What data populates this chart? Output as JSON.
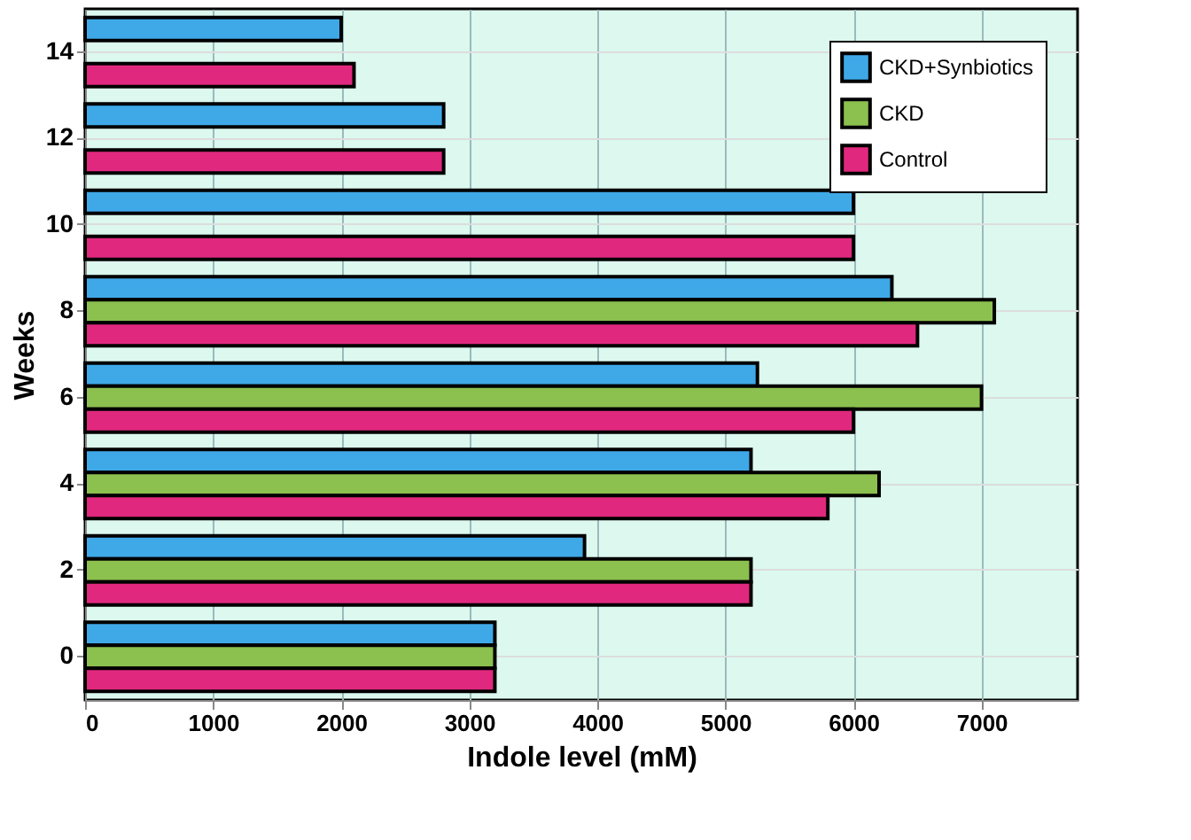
{
  "chart_data": {
    "type": "bar",
    "orientation": "horizontal",
    "xlabel": "Indole level (mM)",
    "ylabel": "Weeks",
    "categories": [
      "14",
      "12",
      "10",
      "8",
      "6",
      "4",
      "2",
      "0"
    ],
    "series": [
      {
        "name": "CKD+Synbiotics",
        "color": "#3fa9e8",
        "values": [
          2000,
          2800,
          6000,
          6300,
          5250,
          5200,
          3900,
          3200
        ]
      },
      {
        "name": "CKD",
        "color": "#8cc04f",
        "values": [
          null,
          null,
          null,
          7100,
          7000,
          6200,
          5200,
          3200
        ]
      },
      {
        "name": "Control",
        "color": "#e0287e",
        "values": [
          2100,
          2800,
          6000,
          6500,
          6000,
          5800,
          5200,
          3200
        ]
      }
    ],
    "xlim": [
      0,
      7750
    ],
    "xticks": [
      0,
      1000,
      2000,
      3000,
      4000,
      5000,
      6000,
      7000
    ],
    "grid": true,
    "legend": "top right"
  }
}
